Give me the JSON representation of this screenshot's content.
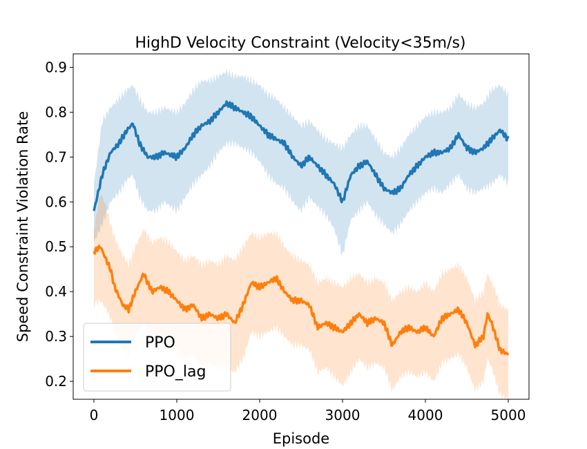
{
  "chart_data": {
    "type": "line",
    "title": "HighD Velocity Constraint (Velocity<35m/s)",
    "xlabel": "Episode",
    "ylabel": "Speed Constraint Violation Rate",
    "xlim": [
      -250,
      5250
    ],
    "ylim": [
      0.16,
      0.93
    ],
    "xticks": [
      0,
      1000,
      2000,
      3000,
      4000,
      5000
    ],
    "yticks": [
      0.2,
      0.3,
      0.4,
      0.5,
      0.6,
      0.7,
      0.8,
      0.9
    ],
    "xtick_labels": [
      "0",
      "1000",
      "2000",
      "3000",
      "4000",
      "5000"
    ],
    "ytick_labels": [
      "0.2",
      "0.3",
      "0.4",
      "0.5",
      "0.6",
      "0.7",
      "0.8",
      "0.9"
    ],
    "legend_position": "lower-left",
    "series": [
      {
        "name": "PPO",
        "color": "#1f77b4",
        "band_color": "#1f77b4",
        "x": [
          0,
          100,
          200,
          300,
          400,
          470,
          550,
          650,
          750,
          850,
          1000,
          1100,
          1200,
          1300,
          1400,
          1500,
          1600,
          1700,
          1800,
          1900,
          2000,
          2100,
          2200,
          2300,
          2400,
          2500,
          2600,
          2700,
          2800,
          2900,
          3000,
          3100,
          3200,
          3300,
          3400,
          3500,
          3600,
          3700,
          3800,
          3900,
          4000,
          4100,
          4200,
          4300,
          4400,
          4500,
          4600,
          4700,
          4800,
          4900,
          5000
        ],
        "mean": [
          0.58,
          0.66,
          0.71,
          0.73,
          0.76,
          0.775,
          0.73,
          0.7,
          0.7,
          0.71,
          0.7,
          0.72,
          0.75,
          0.77,
          0.78,
          0.8,
          0.82,
          0.81,
          0.8,
          0.79,
          0.77,
          0.75,
          0.74,
          0.73,
          0.7,
          0.68,
          0.7,
          0.68,
          0.66,
          0.64,
          0.6,
          0.66,
          0.68,
          0.69,
          0.66,
          0.63,
          0.62,
          0.63,
          0.66,
          0.68,
          0.7,
          0.71,
          0.71,
          0.72,
          0.75,
          0.72,
          0.71,
          0.72,
          0.74,
          0.76,
          0.74
        ],
        "upper": [
          0.64,
          0.78,
          0.81,
          0.83,
          0.85,
          0.86,
          0.83,
          0.8,
          0.8,
          0.81,
          0.8,
          0.82,
          0.85,
          0.87,
          0.87,
          0.88,
          0.89,
          0.88,
          0.88,
          0.87,
          0.86,
          0.84,
          0.83,
          0.81,
          0.79,
          0.77,
          0.78,
          0.76,
          0.74,
          0.73,
          0.72,
          0.75,
          0.77,
          0.77,
          0.74,
          0.71,
          0.7,
          0.72,
          0.75,
          0.77,
          0.79,
          0.8,
          0.8,
          0.81,
          0.84,
          0.82,
          0.81,
          0.82,
          0.85,
          0.86,
          0.84
        ],
        "lower": [
          0.51,
          0.55,
          0.6,
          0.62,
          0.65,
          0.66,
          0.61,
          0.58,
          0.58,
          0.6,
          0.58,
          0.61,
          0.64,
          0.66,
          0.68,
          0.71,
          0.73,
          0.73,
          0.72,
          0.71,
          0.69,
          0.66,
          0.64,
          0.63,
          0.6,
          0.58,
          0.61,
          0.59,
          0.57,
          0.54,
          0.48,
          0.56,
          0.58,
          0.6,
          0.57,
          0.55,
          0.53,
          0.55,
          0.58,
          0.6,
          0.62,
          0.63,
          0.62,
          0.64,
          0.66,
          0.63,
          0.62,
          0.63,
          0.64,
          0.66,
          0.64
        ]
      },
      {
        "name": "PPO_lag",
        "color": "#ff7f0e",
        "band_color": "#ff7f0e",
        "x": [
          0,
          80,
          150,
          200,
          250,
          300,
          350,
          420,
          500,
          600,
          700,
          800,
          900,
          1000,
          1100,
          1200,
          1300,
          1400,
          1500,
          1600,
          1700,
          1800,
          1900,
          2000,
          2100,
          2200,
          2300,
          2400,
          2500,
          2600,
          2700,
          2800,
          2900,
          3000,
          3100,
          3200,
          3300,
          3400,
          3500,
          3600,
          3700,
          3800,
          3900,
          4000,
          4100,
          4200,
          4300,
          4400,
          4500,
          4600,
          4700,
          4750,
          4800,
          4850,
          4900,
          5000
        ],
        "mean": [
          0.49,
          0.5,
          0.47,
          0.45,
          0.41,
          0.39,
          0.37,
          0.36,
          0.4,
          0.44,
          0.4,
          0.41,
          0.4,
          0.38,
          0.36,
          0.37,
          0.34,
          0.35,
          0.34,
          0.35,
          0.33,
          0.37,
          0.42,
          0.41,
          0.42,
          0.43,
          0.4,
          0.38,
          0.38,
          0.37,
          0.32,
          0.33,
          0.32,
          0.31,
          0.33,
          0.35,
          0.33,
          0.34,
          0.33,
          0.28,
          0.31,
          0.32,
          0.31,
          0.32,
          0.3,
          0.34,
          0.35,
          0.36,
          0.33,
          0.28,
          0.3,
          0.35,
          0.33,
          0.3,
          0.27,
          0.26
        ],
        "upper": [
          0.54,
          0.62,
          0.59,
          0.55,
          0.52,
          0.5,
          0.48,
          0.46,
          0.5,
          0.54,
          0.51,
          0.52,
          0.51,
          0.49,
          0.47,
          0.48,
          0.46,
          0.47,
          0.46,
          0.48,
          0.47,
          0.5,
          0.53,
          0.52,
          0.53,
          0.53,
          0.5,
          0.48,
          0.47,
          0.46,
          0.42,
          0.43,
          0.42,
          0.41,
          0.43,
          0.44,
          0.42,
          0.43,
          0.42,
          0.38,
          0.4,
          0.41,
          0.4,
          0.42,
          0.4,
          0.44,
          0.45,
          0.46,
          0.43,
          0.38,
          0.4,
          0.44,
          0.42,
          0.4,
          0.37,
          0.36
        ],
        "lower": [
          0.37,
          0.38,
          0.36,
          0.34,
          0.31,
          0.29,
          0.27,
          0.26,
          0.3,
          0.33,
          0.29,
          0.3,
          0.29,
          0.27,
          0.25,
          0.26,
          0.23,
          0.24,
          0.23,
          0.23,
          0.22,
          0.25,
          0.31,
          0.3,
          0.31,
          0.32,
          0.3,
          0.28,
          0.28,
          0.27,
          0.22,
          0.23,
          0.21,
          0.19,
          0.22,
          0.25,
          0.23,
          0.24,
          0.23,
          0.18,
          0.21,
          0.22,
          0.21,
          0.22,
          0.2,
          0.24,
          0.25,
          0.26,
          0.23,
          0.18,
          0.2,
          0.25,
          0.23,
          0.2,
          0.17,
          0.16
        ]
      }
    ]
  }
}
